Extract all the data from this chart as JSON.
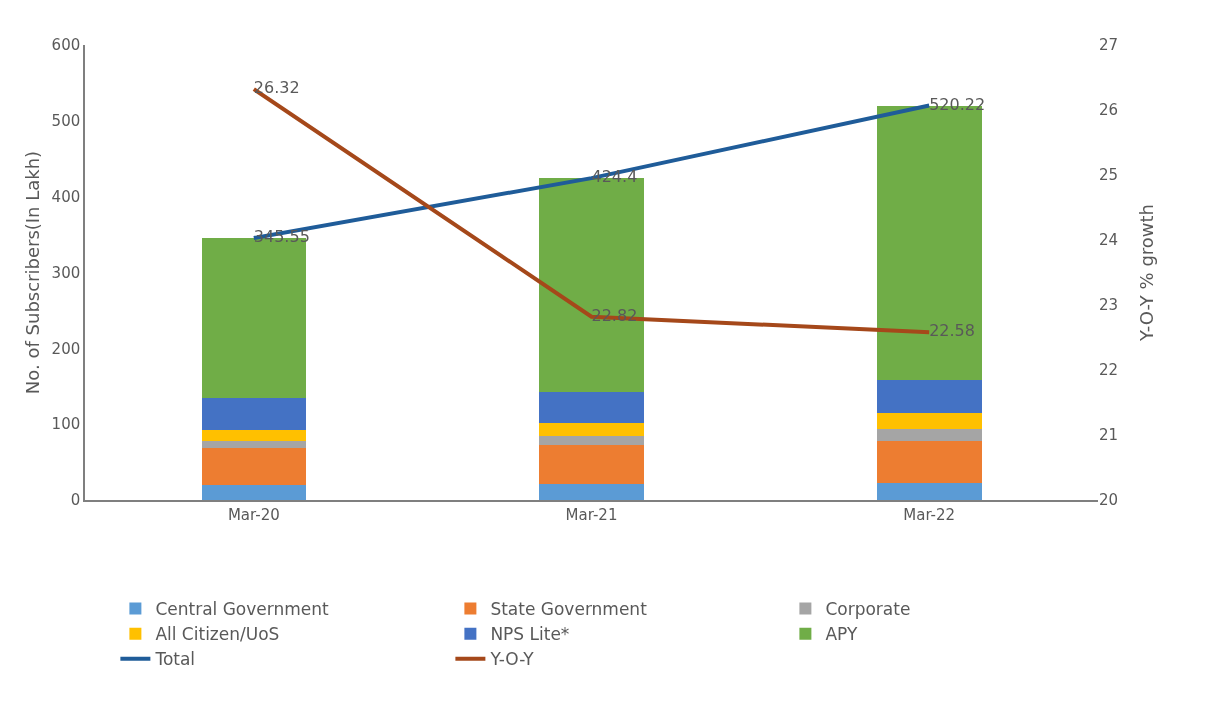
{
  "chart_data": {
    "type": "bar",
    "stacked": true,
    "categories": [
      "Mar-20",
      "Mar-21",
      "Mar-22"
    ],
    "ylabel": "No. of Subscribers(In Lakh)",
    "y2label": "Y-O-Y % growth",
    "ylim": [
      0,
      600
    ],
    "yticks": [
      0,
      100,
      200,
      300,
      400,
      500,
      600
    ],
    "y2lim": [
      20,
      27
    ],
    "y2ticks": [
      20,
      21,
      22,
      23,
      24,
      25,
      26,
      27
    ],
    "grid": false,
    "legend": "bottom",
    "series": [
      {
        "name": "Central Government",
        "color": "#5b9bd5",
        "values": [
          20,
          21,
          22
        ]
      },
      {
        "name": "State Government",
        "color": "#ed7d31",
        "values": [
          48,
          52,
          56
        ]
      },
      {
        "name": "Corporate",
        "color": "#a5a5a5",
        "values": [
          10,
          11,
          15
        ]
      },
      {
        "name": "All Citizen/UoS",
        "color": "#ffc000",
        "values": [
          14,
          17,
          22
        ]
      },
      {
        "name": "NPS Lite*",
        "color": "#4472c4",
        "values": [
          42,
          42,
          43
        ]
      },
      {
        "name": "APY",
        "color": "#70ad47",
        "values": [
          211.55,
          281.4,
          362.22
        ]
      },
      {
        "name": "Total",
        "type": "line",
        "color": "#1f5c99",
        "values": [
          345.55,
          424.4,
          520.22
        ],
        "value_labels": [
          "345.55",
          "424.4",
          "520.22"
        ]
      },
      {
        "name": "Y-O-Y",
        "type": "line",
        "axis": "y2",
        "color": "#a5481a",
        "values": [
          26.32,
          22.82,
          22.58
        ],
        "value_labels": [
          "26.32",
          "22.82",
          "22.58"
        ]
      }
    ]
  }
}
